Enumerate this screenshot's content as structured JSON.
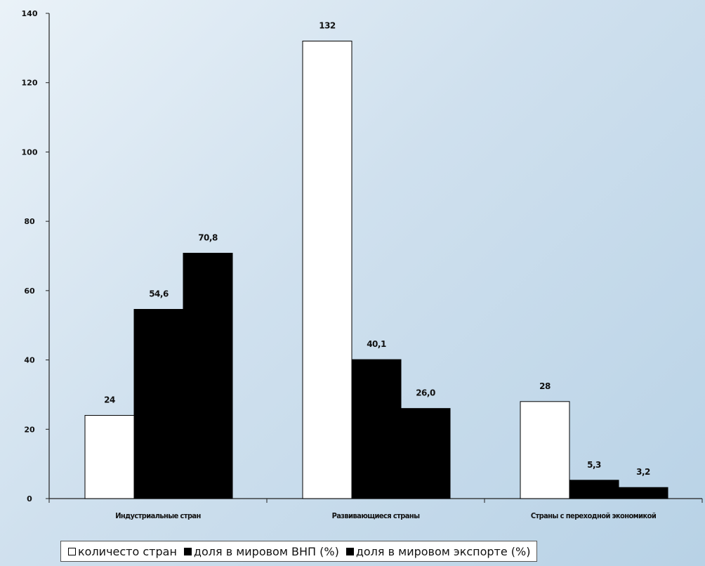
{
  "chart_data": {
    "type": "bar",
    "categories": [
      "Индустриальные стран",
      "Развивающиеся страны",
      "Страны с переходной экономикой"
    ],
    "series": [
      {
        "name": "количесто стран",
        "values": [
          24,
          132,
          28
        ],
        "color": "#ffffff"
      },
      {
        "name": "доля в мировом ВНП (%)",
        "values": [
          54.6,
          40.1,
          5.3
        ],
        "color": "#000000"
      },
      {
        "name": "доля в мировом экспорте (%)",
        "values": [
          70.8,
          26.0,
          3.2
        ],
        "color": "#000000"
      }
    ],
    "data_labels": [
      [
        "24",
        "54,6",
        "70,8"
      ],
      [
        "132",
        "40,1",
        "26,0"
      ],
      [
        "28",
        "5,3",
        "3,2"
      ]
    ],
    "yticks": [
      "0",
      "20",
      "40",
      "60",
      "80",
      "100",
      "120",
      "140"
    ],
    "ylim": [
      0,
      140
    ],
    "title": "",
    "xlabel": "",
    "ylabel": "",
    "grid": false,
    "legend_position": "bottom"
  }
}
